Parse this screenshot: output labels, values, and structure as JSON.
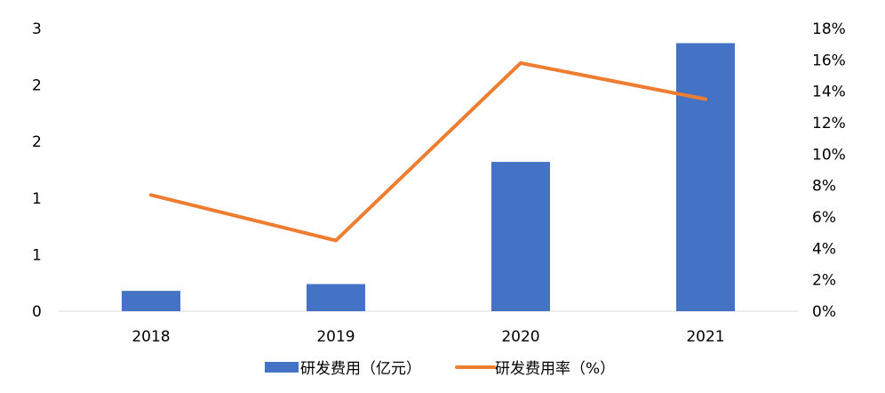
{
  "chart_data": {
    "type": "bar+line",
    "categories": [
      "2018",
      "2019",
      "2020",
      "2021"
    ],
    "series": [
      {
        "name": "研发费用（亿元）",
        "type": "bar",
        "axis": "left",
        "color": "#4472C4",
        "values": [
          0.18,
          0.24,
          1.32,
          2.37
        ]
      },
      {
        "name": "研发费用率（%）",
        "type": "line",
        "axis": "right",
        "color": "#ED7D31",
        "values": [
          7.4,
          4.5,
          15.8,
          13.5
        ]
      }
    ],
    "left_axis": {
      "range": [
        0,
        2.5
      ],
      "ticks": [
        0,
        0.5,
        1,
        1.5,
        2,
        2.5
      ],
      "tick_labels": [
        "0",
        "1",
        "1",
        "2",
        "2",
        "3"
      ]
    },
    "right_axis": {
      "range": [
        0,
        18
      ],
      "ticks": [
        0,
        2,
        4,
        6,
        8,
        10,
        12,
        14,
        16,
        18
      ],
      "tick_labels": [
        "0%",
        "2%",
        "4%",
        "6%",
        "8%",
        "10%",
        "12%",
        "14%",
        "16%",
        "18%"
      ]
    },
    "grid": false,
    "legend": "bottom",
    "axis_color": "#D9D9D9"
  }
}
